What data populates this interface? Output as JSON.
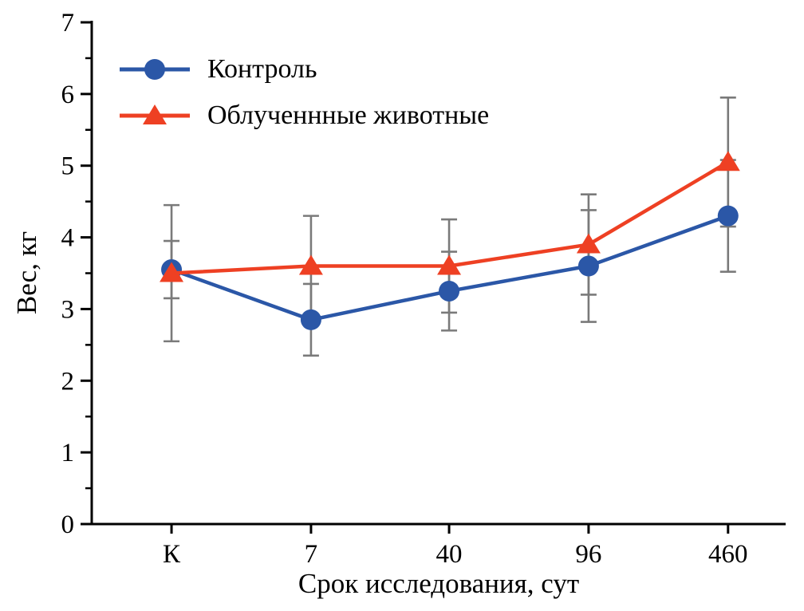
{
  "chart_data": {
    "type": "line",
    "title": "",
    "xlabel": "Срок исследования, сут",
    "ylabel": "Вес, кг",
    "categories": [
      "К",
      "7",
      "40",
      "96",
      "460"
    ],
    "ylim": [
      0,
      7
    ],
    "ytick_step": 1,
    "yminor_step": 0.5,
    "grid": false,
    "legend_position": "top-left-inside",
    "axis_color": "#000000",
    "error_bar_color": "#7a7a7a",
    "series": [
      {
        "name": "Контроль",
        "marker": "circle",
        "color": "#2b57a7",
        "values": [
          3.55,
          2.85,
          3.25,
          3.6,
          4.3
        ],
        "errors": [
          0.4,
          0.5,
          0.55,
          0.78,
          0.78
        ]
      },
      {
        "name": "Облученнные животные",
        "marker": "triangle",
        "color": "#ee4023",
        "values": [
          3.5,
          3.6,
          3.6,
          3.9,
          5.05
        ],
        "errors": [
          0.95,
          0.7,
          0.65,
          0.7,
          0.9
        ]
      }
    ]
  }
}
